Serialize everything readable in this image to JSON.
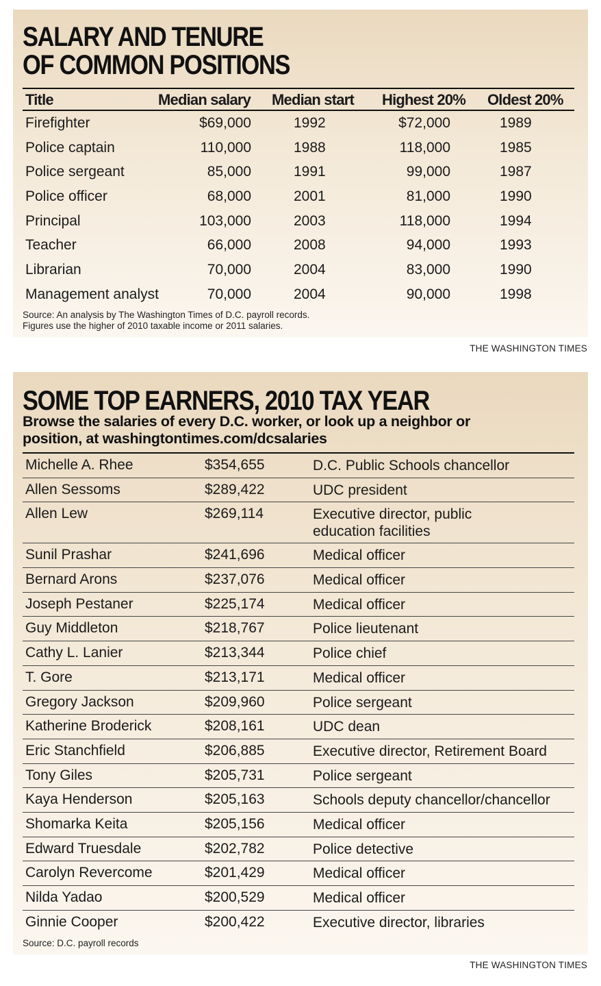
{
  "panel1": {
    "headline_line1": "SALARY AND TENURE",
    "headline_line2": "OF COMMON POSITIONS",
    "headers": [
      "Title",
      "Median salary",
      "Median start",
      "Highest 20%",
      "Oldest 20%"
    ],
    "rows": [
      {
        "title": "Firefighter",
        "median_salary": "$69,000",
        "median_start": "1992",
        "highest": "$72,000",
        "oldest": "1989"
      },
      {
        "title": "Police captain",
        "median_salary": "110,000",
        "median_start": "1988",
        "highest": "118,000",
        "oldest": "1985"
      },
      {
        "title": "Police sergeant",
        "median_salary": "85,000",
        "median_start": "1991",
        "highest": "99,000",
        "oldest": "1987"
      },
      {
        "title": "Police officer",
        "median_salary": "68,000",
        "median_start": "2001",
        "highest": "81,000",
        "oldest": "1990"
      },
      {
        "title": "Principal",
        "median_salary": "103,000",
        "median_start": "2003",
        "highest": "118,000",
        "oldest": "1994"
      },
      {
        "title": "Teacher",
        "median_salary": "66,000",
        "median_start": "2008",
        "highest": "94,000",
        "oldest": "1993"
      },
      {
        "title": "Librarian",
        "median_salary": "70,000",
        "median_start": "2004",
        "highest": "83,000",
        "oldest": "1990"
      },
      {
        "title": "Management analyst",
        "median_salary": "70,000",
        "median_start": "2004",
        "highest": "90,000",
        "oldest": "1998"
      }
    ],
    "source_line1": "Source: An analysis by The Washington Times of D.C. payroll records.",
    "source_line2": "Figures use the higher of 2010 taxable income or 2011 salaries.",
    "credit": "THE WASHINGTON TIMES"
  },
  "panel2": {
    "headline": "SOME TOP EARNERS, 2010 TAX YEAR",
    "subhead_line1": "Browse the salaries of every D.C. worker, or look up a neighbor or",
    "subhead_line2": "position, at washingtontimes.com/dcsalaries",
    "rows": [
      {
        "name": "Michelle A. Rhee",
        "salary": "$354,655",
        "position": "D.C. Public Schools chancellor"
      },
      {
        "name": "Allen Sessoms",
        "salary": "$289,422",
        "position": "UDC president"
      },
      {
        "name": "Allen Lew",
        "salary": "$269,114",
        "position": "Executive director, public education facilities"
      },
      {
        "name": "Sunil Prashar",
        "salary": "$241,696",
        "position": "Medical officer"
      },
      {
        "name": "Bernard Arons",
        "salary": "$237,076",
        "position": "Medical officer"
      },
      {
        "name": "Joseph Pestaner",
        "salary": "$225,174",
        "position": "Medical officer"
      },
      {
        "name": "Guy Middleton",
        "salary": "$218,767",
        "position": "Police lieutenant"
      },
      {
        "name": "Cathy L. Lanier",
        "salary": "$213,344",
        "position": "Police chief"
      },
      {
        "name": "T. Gore",
        "salary": "$213,171",
        "position": "Medical officer"
      },
      {
        "name": "Gregory Jackson",
        "salary": "$209,960",
        "position": "Police sergeant"
      },
      {
        "name": "Katherine Broderick",
        "salary": "$208,161",
        "position": "UDC dean"
      },
      {
        "name": "Eric Stanchfield",
        "salary": "$206,885",
        "position": "Executive director, Retirement Board"
      },
      {
        "name": "Tony Giles",
        "salary": "$205,731",
        "position": "Police sergeant"
      },
      {
        "name": "Kaya Henderson",
        "salary": "$205,163",
        "position": "Schools deputy chancellor/chancellor"
      },
      {
        "name": "Shomarka Keita",
        "salary": "$205,156",
        "position": "Medical officer"
      },
      {
        "name": "Edward Truesdale",
        "salary": "$202,782",
        "position": "Police detective"
      },
      {
        "name": "Carolyn Revercome",
        "salary": "$201,429",
        "position": "Medical officer"
      },
      {
        "name": "Nilda Yadao",
        "salary": "$200,529",
        "position": "Medical officer"
      },
      {
        "name": "Ginnie Cooper",
        "salary": "$200,422",
        "position": "Executive director, libraries"
      }
    ],
    "source": "Source: D.C. payroll records",
    "credit": "THE WASHINGTON TIMES"
  }
}
